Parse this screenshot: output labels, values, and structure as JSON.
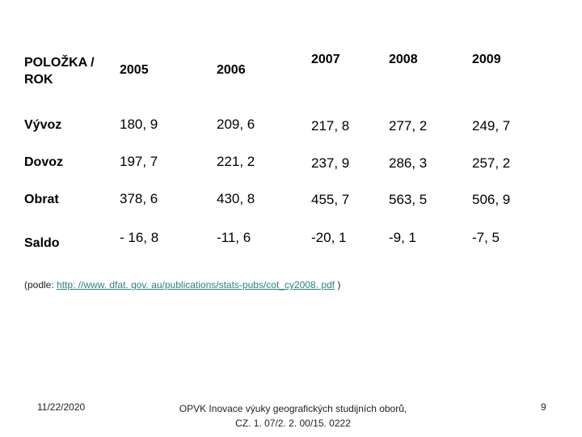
{
  "table": {
    "header_label": "POLOŽKA / ROK",
    "years": [
      "2005",
      "2006",
      "2007",
      "2008",
      "2009"
    ],
    "rows": [
      {
        "label": "Vývoz",
        "values": [
          "180, 9",
          "209, 6",
          "217, 8",
          "277, 2",
          "249, 7"
        ]
      },
      {
        "label": "Dovoz",
        "values": [
          "197, 7",
          "221, 2",
          "237, 9",
          "286, 3",
          "257, 2"
        ]
      },
      {
        "label": "Obrat",
        "values": [
          "378, 6",
          "430, 8",
          "455, 7",
          "563, 5",
          "506, 9"
        ]
      },
      {
        "label": "Saldo",
        "values": [
          "- 16, 8",
          "-11, 6",
          "-20, 1",
          "-9, 1",
          "-7, 5"
        ]
      }
    ]
  },
  "source": {
    "prefix": "(podle: ",
    "link": "http: //www. dfat. gov. au/publications/stats-pubs/cot_cy2008. pdf",
    "suffix": " )"
  },
  "footer": {
    "date": "11/22/2020",
    "project_line1": "OPVK Inovace výuky geografických studijních oborů,",
    "project_line2": "CZ. 1. 07/2. 2. 00/15. 0222",
    "page_number": "9"
  }
}
